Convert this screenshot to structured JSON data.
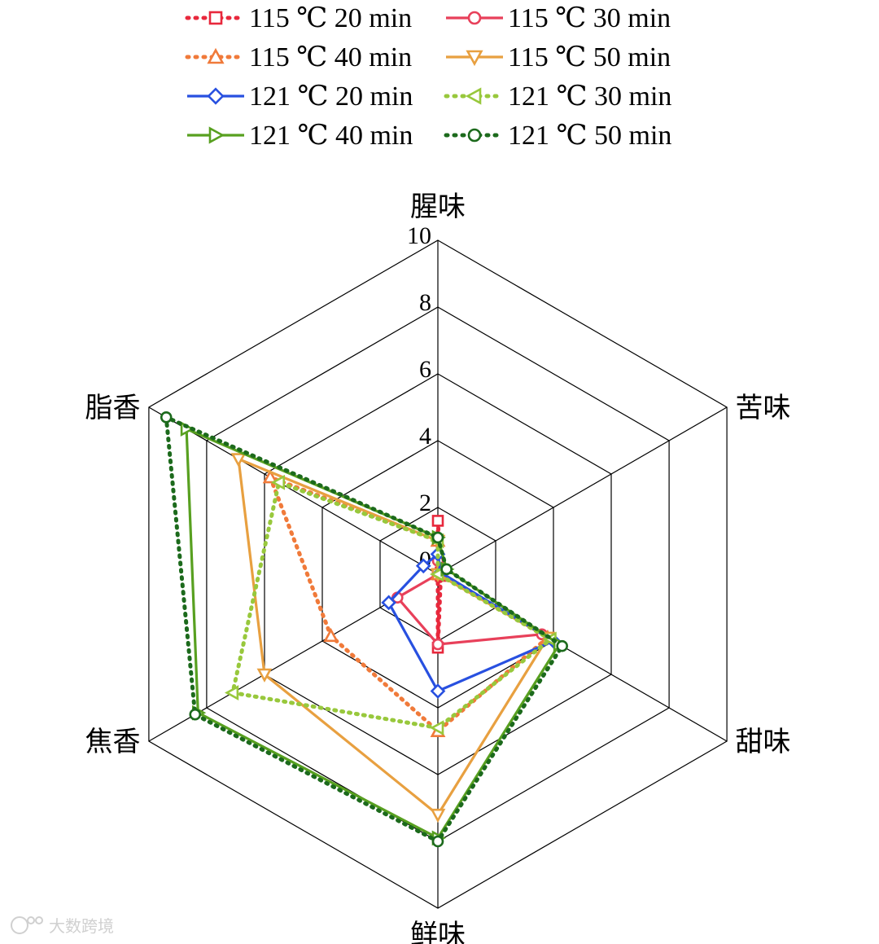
{
  "chart_data": {
    "type": "radar",
    "axes": [
      "腥味",
      "苦味",
      "甜味",
      "鲜味",
      "焦香",
      "脂香"
    ],
    "ticks": [
      {
        "value": 2,
        "label": "2"
      },
      {
        "value": 4,
        "label": "4"
      },
      {
        "value": 6,
        "label": "6"
      },
      {
        "value": 8,
        "label": "8"
      },
      {
        "value": 10,
        "label": "10"
      }
    ],
    "zero_label": "0",
    "range": [
      0,
      10
    ],
    "grid": true,
    "legend_position": "top",
    "series": [
      {
        "name": "115 ℃ 20 min",
        "values": [
          1.6,
          0.1,
          0.1,
          2.2,
          0.0,
          0.0
        ],
        "color": "#e8283c",
        "dash": "dotted",
        "marker": "square"
      },
      {
        "name": "115 ℃ 30 min",
        "values": [
          0.4,
          0.1,
          3.6,
          2.1,
          1.4,
          0.0
        ],
        "color": "#e8405a",
        "dash": "solid",
        "marker": "circle"
      },
      {
        "name": "115 ℃ 40 min",
        "values": [
          1.0,
          0.0,
          3.8,
          4.7,
          3.7,
          5.8
        ],
        "color": "#f07a3a",
        "dash": "dotted",
        "marker": "triangle-up"
      },
      {
        "name": "115 ℃ 50 min",
        "values": [
          1.0,
          0.0,
          3.8,
          7.2,
          6.0,
          6.9
        ],
        "color": "#e8a040",
        "dash": "solid",
        "marker": "triangle-down"
      },
      {
        "name": "121 ℃ 20 min",
        "values": [
          0.6,
          0.1,
          4.0,
          3.5,
          1.7,
          0.5
        ],
        "color": "#2850e0",
        "dash": "solid",
        "marker": "diamond"
      },
      {
        "name": "121 ℃ 30 min",
        "values": [
          1.0,
          0.0,
          3.9,
          4.6,
          7.1,
          5.5
        ],
        "color": "#98c83c",
        "dash": "dotted",
        "marker": "triangle-left"
      },
      {
        "name": "121 ℃ 40 min",
        "values": [
          1.1,
          0.3,
          4.2,
          7.9,
          8.3,
          8.7
        ],
        "color": "#58a020",
        "dash": "solid",
        "marker": "triangle-right"
      },
      {
        "name": "121 ℃ 50 min",
        "values": [
          1.1,
          0.3,
          4.3,
          8.0,
          8.4,
          9.4
        ],
        "color": "#1c6a1c",
        "dash": "dotted",
        "marker": "circle"
      }
    ]
  },
  "watermark": "大数跨境"
}
